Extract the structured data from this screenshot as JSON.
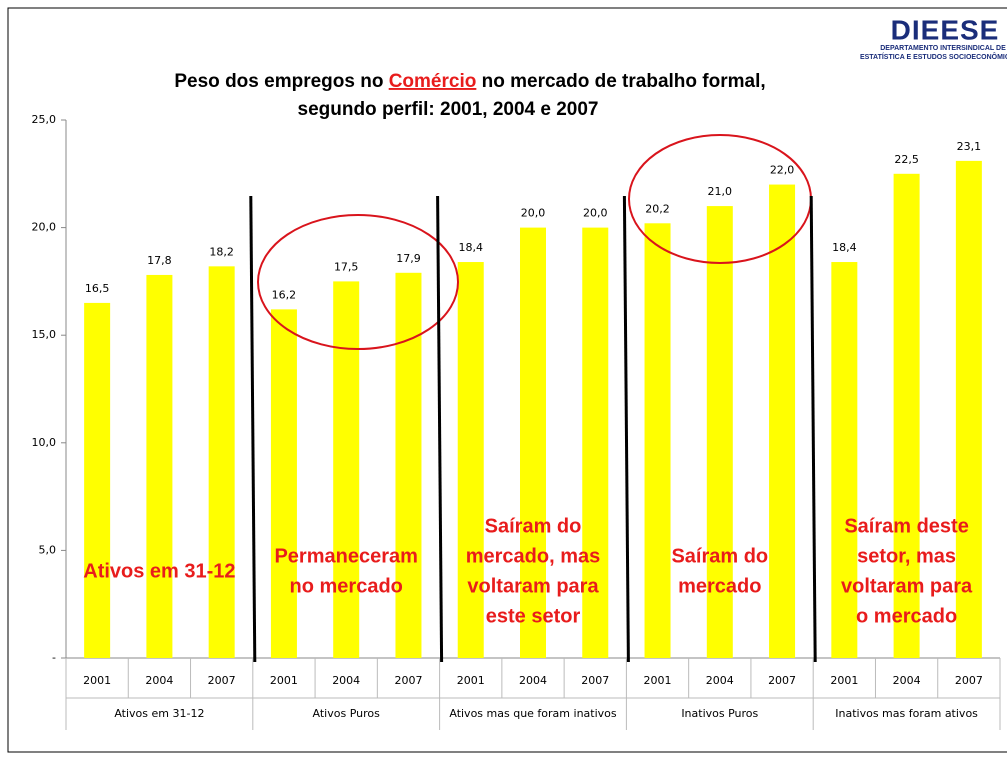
{
  "chart_data": {
    "type": "bar",
    "title": {
      "line1": [
        "Peso dos empregos no ",
        "Comércio",
        " no mercado de trabalho formal,"
      ],
      "line2": "segundo perfil: 2001, 2004 e 2007"
    },
    "color": "#ffff00",
    "ylim": [
      0,
      25
    ],
    "yticks": [
      {
        "value": 0,
        "label": "-"
      },
      {
        "value": 5,
        "label": "5,0"
      },
      {
        "value": 10,
        "label": "10,0"
      },
      {
        "value": 15,
        "label": "15,0"
      },
      {
        "value": 20,
        "label": "20,0"
      },
      {
        "value": 25,
        "label": "25,0"
      }
    ],
    "groups": [
      {
        "name": "Ativos em 31-12",
        "categories": [
          "2001",
          "2004",
          "2007"
        ],
        "values": [
          16.5,
          17.8,
          18.2
        ],
        "value_labels": [
          "16,5",
          "17,8",
          "18,2"
        ],
        "annotation": [
          "Ativos em 31-12"
        ]
      },
      {
        "name": "Ativos Puros",
        "categories": [
          "2001",
          "2004",
          "2007"
        ],
        "values": [
          16.2,
          17.5,
          17.9
        ],
        "value_labels": [
          "16,2",
          "17,5",
          "17,9"
        ],
        "annotation": [
          "Permaneceram",
          "no mercado"
        ]
      },
      {
        "name": "Ativos mas que foram inativos",
        "categories": [
          "2001",
          "2004",
          "2007"
        ],
        "values": [
          18.4,
          20.0,
          20.0
        ],
        "value_labels": [
          "18,4",
          "20,0",
          "20,0"
        ],
        "annotation": [
          "Saíram do",
          "mercado, mas",
          "voltaram para",
          "este setor"
        ]
      },
      {
        "name": "Inativos Puros",
        "categories": [
          "2001",
          "2004",
          "2007"
        ],
        "values": [
          20.2,
          21.0,
          22.0
        ],
        "value_labels": [
          "20,2",
          "21,0",
          "22,0"
        ],
        "annotation": [
          "Saíram do",
          "mercado"
        ]
      },
      {
        "name": "Inativos mas foram ativos",
        "categories": [
          "2001",
          "2004",
          "2007"
        ],
        "values": [
          18.4,
          22.5,
          23.1
        ],
        "value_labels": [
          "18,4",
          "22,5",
          "23,1"
        ],
        "annotation": [
          "Saíram deste",
          "setor, mas",
          "voltaram para",
          "o mercado"
        ]
      }
    ],
    "logo": {
      "name": "DIEESE",
      "line1": "DEPARTAMENTO INTERSINDICAL DE",
      "line2": "ESTATÍSTICA E ESTUDOS SOCIOECONÔMICOS"
    }
  }
}
